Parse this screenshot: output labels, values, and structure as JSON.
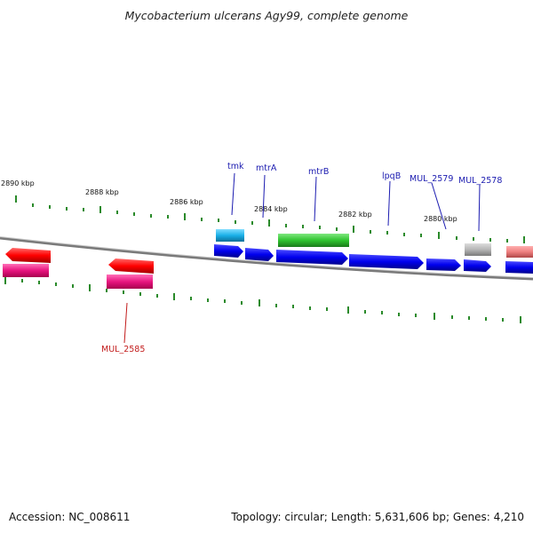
{
  "title": "Mycobacterium ulcerans Agy99, complete genome",
  "footer": {
    "accession": "Accession: NC_008611",
    "summary": "Topology: circular; Length: 5,631,606 bp; Genes: 4,210"
  },
  "kbp_labels": [
    "2890 kbp",
    "2888 kbp",
    "2886 kbp",
    "2884 kbp",
    "2882 kbp",
    "2880 kbp"
  ],
  "gene_labels": [
    "tmk",
    "mtrA",
    "mtrB",
    "lpqB",
    "MUL_2579",
    "MUL_2578",
    "MUL_2585"
  ],
  "colors": {
    "forward_cds": "#0000ee",
    "reverse_cds": "#ff0000",
    "reverse_pink": "#e8157f",
    "tmk": "#1ab0e8",
    "mtrB": "#2fc42f",
    "grey": "#b5b5b5",
    "salmon": "#ee7f7f",
    "tick": "#2a8a2a",
    "label_blue": "#1b1bb0",
    "label_red": "#c21b1b",
    "backbone": "#777777"
  }
}
